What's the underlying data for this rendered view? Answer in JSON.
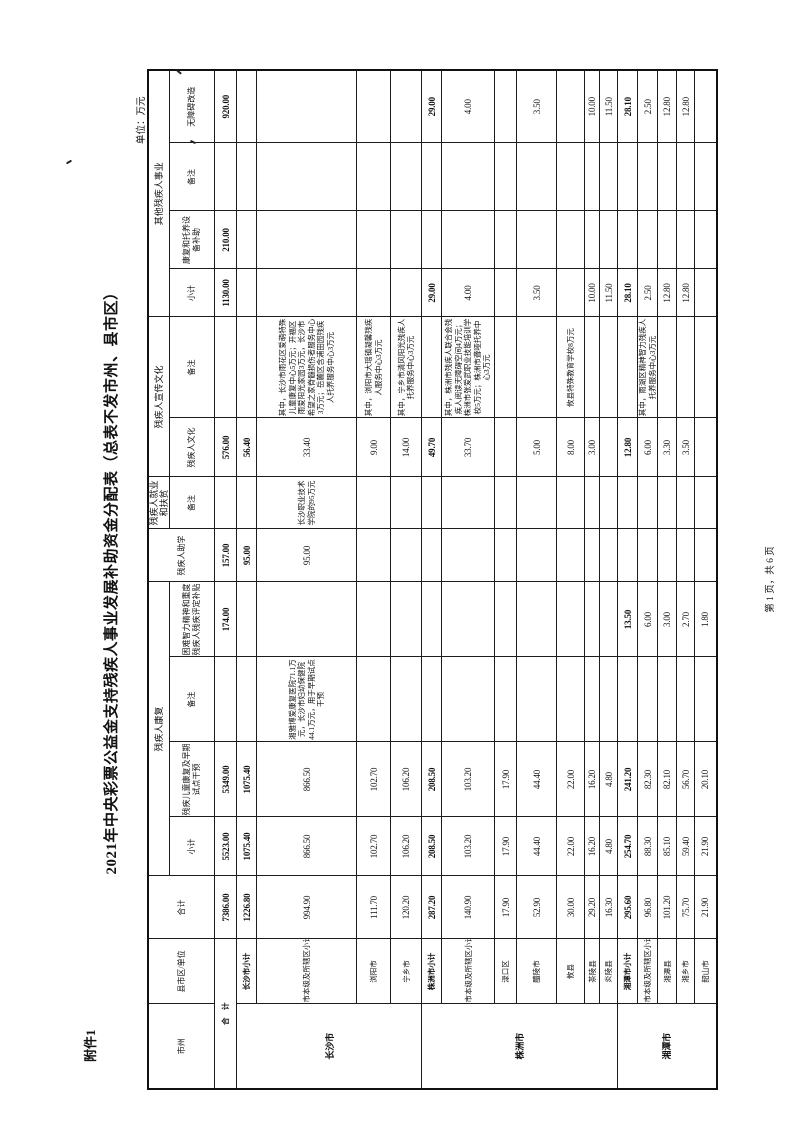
{
  "page": {
    "attachment": "附件1",
    "title": "2021年中央彩票公益金支持残疾人事业发展补助资金分配表（总表不发市州、县市区）",
    "unit_note": "单位：万元",
    "page_note": "第 1 页，共 6 页"
  },
  "table": {
    "fixed_headers": {
      "shi": "市州",
      "county": "县市区/单位",
      "total": "合计"
    },
    "groups": [
      {
        "label": "残疾人康复",
        "children": [
          "小计",
          "残疾儿童康复及早期试点干预",
          "备注",
          "困难智力精神和重度残疾人残疾评定补贴"
        ]
      },
      {
        "label": "残疾人助学",
        "children": []
      },
      {
        "label": "残疾人就业和扶贫",
        "children": [
          "备注"
        ]
      },
      {
        "label": "残疾人宣传文化",
        "children": [
          "残疾人文化",
          "备注"
        ]
      },
      {
        "label": "其他残疾人事业",
        "children": [
          "小计",
          "康复和托养设备补助",
          "备注",
          "无障碍改造"
        ]
      }
    ],
    "rows": [
      {
        "type": "total",
        "shi": null,
        "county": "合　计",
        "county_colspan": 2,
        "cells": [
          "7386.00",
          "5523.00",
          "5349.00",
          "",
          "174.00",
          "157.00",
          "",
          "576.00",
          "",
          "1130.00",
          "210.00",
          "",
          "920.00"
        ]
      },
      {
        "type": "city-subtotal",
        "shi": {
          "label": "长沙市",
          "rowspan": 4
        },
        "county": "长沙市小计",
        "cells": [
          "1226.80",
          "1075.40",
          "1075.40",
          "",
          "",
          "95.00",
          "",
          "56.40",
          "",
          "",
          "",
          "",
          ""
        ]
      },
      {
        "type": "detail",
        "shi": null,
        "county": "市本级及所辖区小计",
        "cells": [
          "994.90",
          "866.50",
          "866.50",
          "湘雅博爱康复医院71.1万元，长沙市妇幼保健院44.1万元，用于早期试点干预",
          "",
          "95.00",
          "长沙职业技术学院的95万元",
          "33.40",
          "其中，长沙市雨花区爱萌特殊儿童康复中心5万元；开福区雨爱阳光家园3万元，长沙市希望之家脊髓损伤者服务中心3万元；岳麓区含浦田园残疾人托养服务中心3万元",
          "",
          "",
          "",
          ""
        ]
      },
      {
        "type": "detail",
        "shi": null,
        "county": "浏阳市",
        "cells": [
          "111.70",
          "102.70",
          "102.70",
          "",
          "",
          "",
          "",
          "9.00",
          "其中，浏阳市大瑶镇凝馨残疾人服务中心3万元",
          "",
          "",
          "",
          ""
        ]
      },
      {
        "type": "detail",
        "shi": null,
        "county": "宁乡市",
        "cells": [
          "120.20",
          "106.20",
          "106.20",
          "",
          "",
          "",
          "",
          "14.00",
          "其中，宁乡市清风阳光残疾人托养服务中心3万元",
          "",
          "",
          "",
          ""
        ]
      },
      {
        "type": "city-subtotal",
        "shi": {
          "label": "株洲市",
          "rowspan": 7
        },
        "county": "株洲市小计",
        "cells": [
          "287.20",
          "208.50",
          "208.50",
          "",
          "",
          "",
          "",
          "49.70",
          "",
          "29.00",
          "",
          "",
          "29.00"
        ]
      },
      {
        "type": "detail",
        "shi": null,
        "county": "市本级及所辖区小计",
        "cells": [
          "140.90",
          "103.20",
          "103.20",
          "",
          "",
          "",
          "",
          "33.70",
          "其中，株洲市残疾人联合会残疾人阅读无障碍空间4万元；株洲市张爱武职业技能培训学校5万元；株洲市聋哑托养中心3万元",
          "4.00",
          "",
          "",
          "4.00"
        ]
      },
      {
        "type": "detail",
        "shi": null,
        "county": "渌口区",
        "cells": [
          "17.90",
          "17.90",
          "17.90",
          "",
          "",
          "",
          "",
          "",
          "",
          "",
          "",
          "",
          ""
        ]
      },
      {
        "type": "detail",
        "shi": null,
        "county": "醴陵市",
        "cells": [
          "52.90",
          "44.40",
          "44.40",
          "",
          "",
          "",
          "",
          "5.00",
          "",
          "3.50",
          "",
          "",
          "3.50"
        ]
      },
      {
        "type": "detail",
        "shi": null,
        "county": "攸县",
        "cells": [
          "30.00",
          "22.00",
          "22.00",
          "",
          "",
          "",
          "",
          "8.00",
          "攸县特殊教育学校8万元",
          "",
          "",
          "",
          ""
        ]
      },
      {
        "type": "detail",
        "shi": null,
        "county": "茶陵县",
        "cells": [
          "29.20",
          "16.20",
          "16.20",
          "",
          "",
          "",
          "",
          "3.00",
          "",
          "10.00",
          "",
          "",
          "10.00"
        ]
      },
      {
        "type": "detail",
        "shi": null,
        "county": "炎陵县",
        "cells": [
          "16.30",
          "4.80",
          "4.80",
          "",
          "",
          "",
          "",
          "",
          "",
          "11.50",
          "",
          "",
          "11.50"
        ]
      },
      {
        "type": "city-subtotal",
        "shi": {
          "label": "湘潭市",
          "rowspan": 5
        },
        "county": "湘潭市小计",
        "cells": [
          "295.60",
          "254.70",
          "241.20",
          "",
          "13.50",
          "",
          "",
          "12.80",
          "",
          "28.10",
          "",
          "",
          "28.10"
        ]
      },
      {
        "type": "detail",
        "shi": null,
        "county": "市本级及所辖区小计",
        "cells": [
          "96.80",
          "88.30",
          "82.30",
          "",
          "6.00",
          "",
          "",
          "6.00",
          "其中，雨湖区精神智力残疾人托养服务中心3万元",
          "2.50",
          "",
          "",
          "2.50"
        ]
      },
      {
        "type": "detail",
        "shi": null,
        "county": "湘潭县",
        "cells": [
          "101.20",
          "85.10",
          "82.10",
          "",
          "3.00",
          "",
          "",
          "3.30",
          "",
          "12.80",
          "",
          "",
          "12.80"
        ]
      },
      {
        "type": "detail",
        "shi": null,
        "county": "湘乡市",
        "cells": [
          "75.70",
          "59.40",
          "56.70",
          "",
          "2.70",
          "",
          "",
          "3.50",
          "",
          "12.80",
          "",
          "",
          "12.80"
        ]
      },
      {
        "type": "detail",
        "shi": null,
        "county": "韶山市",
        "cells": [
          "21.90",
          "21.90",
          "20.10",
          "",
          "1.80",
          "",
          "",
          "",
          "",
          "",
          "",
          "",
          ""
        ]
      }
    ]
  }
}
